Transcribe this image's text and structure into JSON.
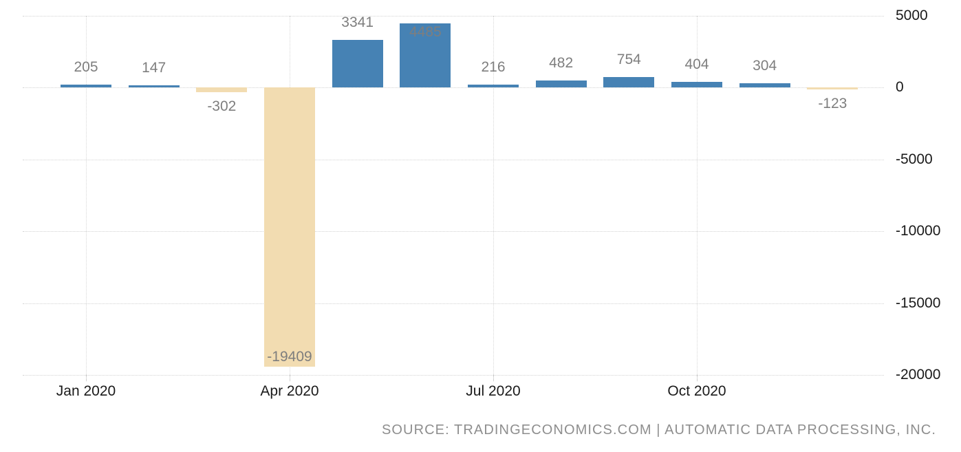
{
  "chart_data": {
    "type": "bar",
    "title": "",
    "xlabel": "",
    "ylabel": "",
    "categories": [
      "Jan 2020",
      "Feb 2020",
      "Mar 2020",
      "Apr 2020",
      "May 2020",
      "Jun 2020",
      "Jul 2020",
      "Aug 2020",
      "Sep 2020",
      "Oct 2020",
      "Nov 2020",
      "Dec 2020"
    ],
    "values": [
      205,
      147,
      -302,
      -19409,
      3341,
      4485,
      216,
      482,
      754,
      404,
      304,
      -123
    ],
    "data_labels": [
      "205",
      "147",
      "-302",
      "-19409",
      "3341",
      "4485",
      "216",
      "482",
      "754",
      "404",
      "304",
      "-123"
    ],
    "label_placement": [
      "above",
      "above",
      "below",
      "inside-bottom",
      "above",
      "inside-top",
      "above",
      "above",
      "above",
      "above",
      "above",
      "below"
    ],
    "x_axis_ticks": [
      {
        "index": 0,
        "label": "Jan 2020"
      },
      {
        "index": 3,
        "label": "Apr 2020"
      },
      {
        "index": 6,
        "label": "Jul 2020"
      },
      {
        "index": 9,
        "label": "Oct 2020"
      }
    ],
    "y_axis_ticks": [
      {
        "value": 5000,
        "label": "5000"
      },
      {
        "value": 0,
        "label": "0"
      },
      {
        "value": -5000,
        "label": "-5000"
      },
      {
        "value": -10000,
        "label": "-10000"
      },
      {
        "value": -15000,
        "label": "-15000"
      },
      {
        "value": -20000,
        "label": "-20000"
      }
    ],
    "ylim": [
      -20000,
      5000
    ],
    "grid": true,
    "legend": false,
    "y_axis_position": "right",
    "colors": {
      "positive_bar": "#4682b4",
      "negative_bar": "#f2dcb1",
      "data_label": "#7e7e7e",
      "axis_label": "#1a1a1a",
      "gridline": "#d2d2d2",
      "background": "#ffffff",
      "source_text": "#8e8e8e"
    }
  },
  "footer": {
    "source_text": "SOURCE: TRADINGECONOMICS.COM | AUTOMATIC DATA PROCESSING, INC."
  }
}
